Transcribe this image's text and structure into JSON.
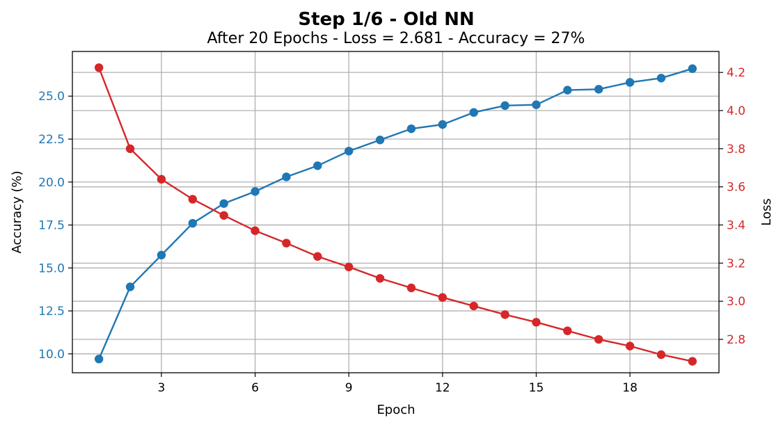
{
  "chart_data": {
    "type": "line",
    "title": "Step 1/6 - Old NN",
    "subtitle": "After 20 Epochs - Loss = 2.681 - Accuracy = 27%",
    "xlabel": "Epoch",
    "ylabel_left": "Accuracy (%)",
    "ylabel_right": "Loss",
    "x": [
      1,
      2,
      3,
      4,
      5,
      6,
      7,
      8,
      9,
      10,
      11,
      12,
      13,
      14,
      15,
      16,
      17,
      18,
      19,
      20
    ],
    "x_ticks": [
      "3",
      "6",
      "9",
      "12",
      "15",
      "18"
    ],
    "y_left_ticks": [
      "10.0",
      "12.5",
      "15.0",
      "17.5",
      "20.0",
      "22.5",
      "25.0"
    ],
    "y_right_ticks": [
      "2.8",
      "3.0",
      "3.2",
      "3.4",
      "3.6",
      "3.8",
      "4.0",
      "4.2"
    ],
    "xlim": [
      0.15,
      20.85
    ],
    "ylim_left": [
      8.9,
      27.6
    ],
    "ylim_right": [
      2.625,
      4.31
    ],
    "grid": true,
    "series": [
      {
        "axis": "left",
        "color": "#1f77b4",
        "values": [
          9.7,
          13.9,
          15.75,
          17.6,
          18.75,
          19.45,
          20.3,
          20.95,
          21.8,
          22.45,
          23.1,
          23.35,
          24.05,
          24.45,
          24.5,
          25.35,
          25.4,
          25.8,
          26.05,
          26.6
        ]
      },
      {
        "axis": "right",
        "color": "#d62728",
        "values": [
          4.225,
          3.8,
          3.64,
          3.535,
          3.45,
          3.37,
          3.305,
          3.235,
          3.18,
          3.12,
          3.07,
          3.02,
          2.975,
          2.93,
          2.89,
          2.845,
          2.8,
          2.765,
          2.72,
          2.685
        ]
      }
    ]
  }
}
